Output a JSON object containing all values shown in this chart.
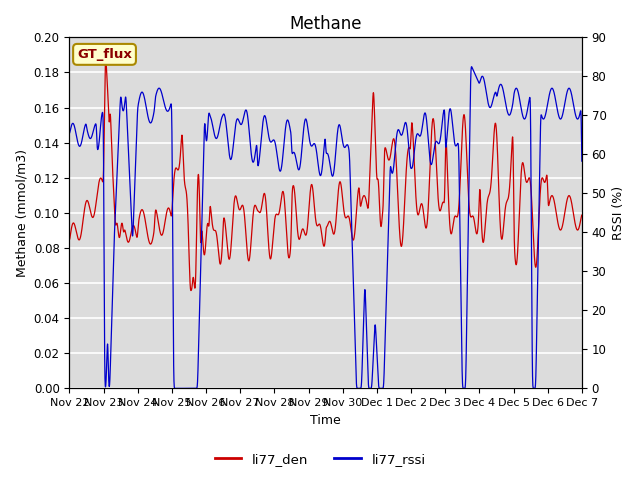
{
  "title": "Methane",
  "xlabel": "Time",
  "ylabel_left": "Methane (mmol/m3)",
  "ylabel_right": "RSSI (%)",
  "ylim_left": [
    0.0,
    0.2
  ],
  "ylim_right": [
    0,
    90
  ],
  "yticks_left": [
    0.0,
    0.02,
    0.04,
    0.06,
    0.08,
    0.1,
    0.12,
    0.14,
    0.16,
    0.18,
    0.2
  ],
  "yticks_right": [
    0,
    10,
    20,
    30,
    40,
    50,
    60,
    70,
    80,
    90
  ],
  "xtick_labels": [
    "Nov 22",
    "Nov 23",
    "Nov 24",
    "Nov 25",
    "Nov 26",
    "Nov 27",
    "Nov 28",
    "Nov 29",
    "Nov 30",
    "Dec 1",
    "Dec 2",
    "Dec 3",
    "Dec 4",
    "Dec 5",
    "Dec 6",
    "Dec 7"
  ],
  "line1_color": "#cc0000",
  "line2_color": "#0000cc",
  "line1_label": "li77_den",
  "line2_label": "li77_rssi",
  "legend_text": "GT_flux",
  "legend_bg": "#ffffcc",
  "legend_border": "#aa8800",
  "bg_color": "#dcdcdc",
  "grid_color": "#ffffff",
  "title_fontsize": 12,
  "label_fontsize": 9,
  "tick_fontsize": 8.5
}
